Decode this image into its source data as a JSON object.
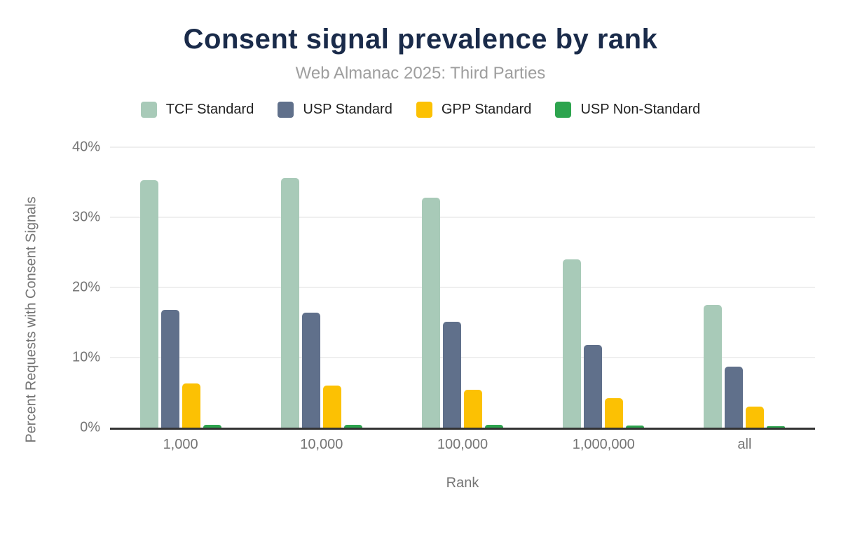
{
  "header": {
    "title": "Consent signal prevalence by rank",
    "subtitle": "Web Almanac 2025: Third Parties"
  },
  "chart_data": {
    "type": "bar",
    "title": "Consent signal prevalence by rank",
    "subtitle": "Web Almanac 2025: Third Parties",
    "xlabel": "Rank",
    "ylabel": "Percent Requests with Consent Signals",
    "categories": [
      "1,000",
      "10,000",
      "100,000",
      "1,000,000",
      "all"
    ],
    "series": [
      {
        "name": "TCF Standard",
        "color": "#a8cab8",
        "values": [
          35.3,
          35.6,
          32.8,
          24.0,
          17.5
        ]
      },
      {
        "name": "USP Standard",
        "color": "#60708b",
        "values": [
          16.8,
          16.4,
          15.1,
          11.8,
          8.7
        ]
      },
      {
        "name": "GPP Standard",
        "color": "#fcc103",
        "values": [
          6.3,
          6.0,
          5.4,
          4.2,
          3.0
        ]
      },
      {
        "name": "USP Non-Standard",
        "color": "#2da44e",
        "values": [
          0.4,
          0.45,
          0.45,
          0.3,
          0.25
        ]
      }
    ],
    "ylim": [
      0,
      40
    ],
    "yticks": [
      {
        "value": 0,
        "label": "0%"
      },
      {
        "value": 10,
        "label": "10%"
      },
      {
        "value": 20,
        "label": "20%"
      },
      {
        "value": 30,
        "label": "30%"
      },
      {
        "value": 40,
        "label": "40%"
      }
    ],
    "grid": "horizontal",
    "legend_position": "top"
  },
  "colors": {
    "title_text": "#1a2b4a",
    "subtitle_text": "#9e9e9e",
    "axis_text": "#757575",
    "legend_text": "#212121",
    "axis_line": "#333333",
    "gridline": "#efefef",
    "background": "#ffffff"
  }
}
